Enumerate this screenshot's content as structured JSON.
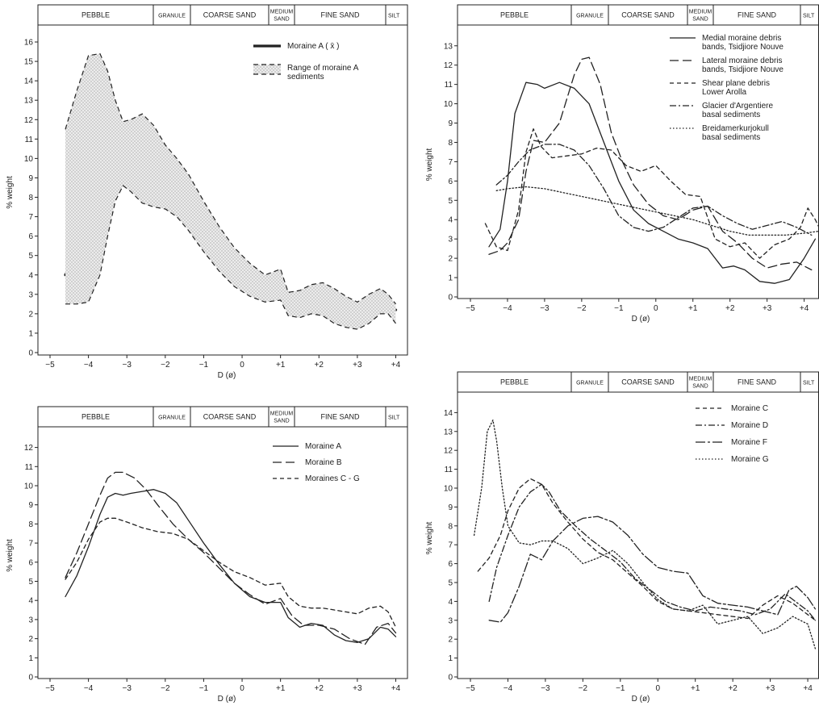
{
  "bands": [
    "PEBBLE",
    "GRANULE",
    "COARSE SAND",
    "MEDIUM SAND",
    "FINE SAND",
    "SILT"
  ],
  "x_label": "D (ø)",
  "y_label": "% weight",
  "chart_data": [
    {
      "type": "area",
      "x_ticks": [
        "−5",
        "−4",
        "−3",
        "−2",
        "−1",
        "0",
        "+1",
        "+2",
        "+3",
        "+4"
      ],
      "xlim": [
        -5,
        4.2
      ],
      "ylim": [
        0,
        16.5
      ],
      "y_ticks": [
        0,
        1,
        2,
        3,
        4,
        5,
        6,
        7,
        8,
        9,
        10,
        11,
        12,
        13,
        14,
        15,
        16
      ],
      "legend": {
        "position": "top-right"
      },
      "series": [
        {
          "name": "Moraine A ( x̄ )",
          "style": "bold",
          "x": [
            -4.6,
            -4.3,
            -4,
            -3.7,
            -3.5,
            -3.3,
            -3.1,
            -2.9,
            -2.6,
            -2.3,
            -2,
            -1.7,
            -1.4,
            -1,
            -0.6,
            -0.2,
            0.2,
            0.6,
            1,
            1.2,
            1.5,
            1.8,
            2.1,
            2.4,
            2.7,
            3,
            3.3,
            3.6,
            3.8,
            4.0
          ],
          "y": [
            4.0,
            5.0,
            6.5,
            8.2,
            9.3,
            9.6,
            9.4,
            9.5,
            9.7,
            9.8,
            9.6,
            9.0,
            8.2,
            7.0,
            5.8,
            4.8,
            4.1,
            3.8,
            3.7,
            3.0,
            2.6,
            2.9,
            2.7,
            2.2,
            1.8,
            1.7,
            1.9,
            2.5,
            2.4,
            2.2
          ]
        },
        {
          "name": "Range of moraine A sediments",
          "style": "dashed-range",
          "x": [
            -4.6,
            -4.3,
            -4,
            -3.7,
            -3.5,
            -3.3,
            -3.1,
            -2.9,
            -2.6,
            -2.3,
            -2,
            -1.7,
            -1.4,
            -1,
            -0.6,
            -0.2,
            0.2,
            0.6,
            1,
            1.2,
            1.5,
            1.8,
            2.1,
            2.4,
            2.7,
            3,
            3.3,
            3.6,
            3.8,
            4.0
          ],
          "upper": [
            11.5,
            13.5,
            15.3,
            15.4,
            14.5,
            13.0,
            11.9,
            12.0,
            12.3,
            11.7,
            10.7,
            10.0,
            9.2,
            7.8,
            6.5,
            5.4,
            4.6,
            4.0,
            4.3,
            3.1,
            3.2,
            3.5,
            3.6,
            3.3,
            2.9,
            2.6,
            3.0,
            3.3,
            3.0,
            2.5
          ],
          "lower": [
            2.5,
            2.5,
            2.6,
            4.0,
            6.0,
            7.8,
            8.6,
            8.3,
            7.7,
            7.5,
            7.4,
            7.0,
            6.3,
            5.2,
            4.2,
            3.4,
            2.9,
            2.6,
            2.7,
            1.9,
            1.8,
            2.0,
            1.9,
            1.5,
            1.3,
            1.2,
            1.5,
            2.0,
            2.0,
            1.5
          ]
        }
      ]
    },
    {
      "type": "line",
      "x_ticks": [
        "−5",
        "−4",
        "−3",
        "−2",
        "−1",
        "0",
        "+1",
        "+2",
        "+3",
        "+4"
      ],
      "xlim": [
        -5,
        4.4
      ],
      "ylim": [
        0,
        13.7
      ],
      "y_ticks": [
        0,
        1,
        2,
        3,
        4,
        5,
        6,
        7,
        8,
        9,
        10,
        11,
        12,
        13
      ],
      "legend": {
        "position": "top-right"
      },
      "series": [
        {
          "name": "Medial moraine debris bands, Tsidjiore Nouve",
          "style": "solid",
          "x": [
            -4.5,
            -4.2,
            -4,
            -3.8,
            -3.5,
            -3.2,
            -3,
            -2.6,
            -2.2,
            -1.8,
            -1.4,
            -1,
            -0.6,
            -0.2,
            0.2,
            0.6,
            1,
            1.4,
            1.8,
            2.1,
            2.4,
            2.8,
            3.2,
            3.6,
            4.0,
            4.3
          ],
          "y": [
            2.6,
            3.5,
            6.0,
            9.5,
            11.1,
            11.0,
            10.8,
            11.1,
            10.8,
            10.0,
            8.0,
            6.0,
            4.5,
            3.8,
            3.4,
            3.0,
            2.8,
            2.5,
            1.5,
            1.6,
            1.4,
            0.8,
            0.7,
            0.9,
            2.0,
            3.0
          ]
        },
        {
          "name": "Lateral moraine debris bands, Tsidjiore Nouve",
          "style": "long-dash",
          "x": [
            -4.5,
            -4.2,
            -4,
            -3.7,
            -3.5,
            -3.3,
            -3,
            -2.6,
            -2.2,
            -2,
            -1.8,
            -1.5,
            -1.2,
            -0.9,
            -0.6,
            -0.2,
            0.2,
            0.6,
            1,
            1.4,
            1.8,
            2.2,
            2.6,
            3,
            3.4,
            3.8,
            4.2
          ],
          "y": [
            2.2,
            2.4,
            2.8,
            4.0,
            6.5,
            8.1,
            8.0,
            9.0,
            11.5,
            12.3,
            12.4,
            11.0,
            8.5,
            7.0,
            5.8,
            4.8,
            4.2,
            4.0,
            4.5,
            4.7,
            3.4,
            2.8,
            2.0,
            1.5,
            1.7,
            1.8,
            1.4
          ]
        },
        {
          "name": "Shear plane debris Lower Arolla",
          "style": "short-dash",
          "x": [
            -4.6,
            -4.3,
            -4,
            -3.7,
            -3.5,
            -3.3,
            -3.1,
            -2.8,
            -2.4,
            -2,
            -1.6,
            -1.2,
            -0.8,
            -0.4,
            0,
            0.4,
            0.8,
            1.2,
            1.6,
            2,
            2.4,
            2.8,
            3.2,
            3.6,
            3.9,
            4.1,
            4.3,
            4.5
          ],
          "y": [
            3.8,
            2.6,
            2.4,
            4.5,
            7.5,
            8.7,
            7.8,
            7.2,
            7.3,
            7.4,
            7.7,
            7.6,
            6.8,
            6.5,
            6.8,
            6.0,
            5.3,
            5.2,
            3.0,
            2.6,
            2.8,
            2.0,
            2.7,
            3.0,
            3.6,
            4.6,
            4.0,
            3.2
          ]
        },
        {
          "name": "Glacier d'Argentiere basal sediments",
          "style": "dash-dot",
          "x": [
            -4.3,
            -4,
            -3.7,
            -3.4,
            -3,
            -2.6,
            -2.2,
            -1.8,
            -1.4,
            -1,
            -0.6,
            -0.2,
            0.2,
            0.6,
            1,
            1.4,
            1.8,
            2.2,
            2.6,
            3,
            3.4,
            3.8,
            4.2
          ],
          "y": [
            5.8,
            6.3,
            7.0,
            7.6,
            7.9,
            7.9,
            7.6,
            6.8,
            5.6,
            4.2,
            3.6,
            3.4,
            3.6,
            4.1,
            4.6,
            4.7,
            4.2,
            3.8,
            3.5,
            3.7,
            3.9,
            3.6,
            3.2
          ]
        },
        {
          "name": "Breidamerkurjokull basal sediments",
          "style": "dotted",
          "x": [
            -4.3,
            -4,
            -3.5,
            -3,
            -2.5,
            -2,
            -1.5,
            -1,
            -0.5,
            0,
            0.5,
            1,
            1.5,
            2,
            2.5,
            3,
            3.5,
            4,
            4.4
          ],
          "y": [
            5.5,
            5.6,
            5.7,
            5.6,
            5.4,
            5.2,
            5.0,
            4.8,
            4.6,
            4.4,
            4.2,
            4.0,
            3.7,
            3.4,
            3.2,
            3.2,
            3.2,
            3.3,
            3.4
          ]
        }
      ]
    },
    {
      "type": "line",
      "x_ticks": [
        "−5",
        "−4",
        "−3",
        "−2",
        "−1",
        "0",
        "+1",
        "+2",
        "+3",
        "+4"
      ],
      "xlim": [
        -5,
        4.2
      ],
      "ylim": [
        0,
        12.7
      ],
      "y_ticks": [
        0,
        1,
        2,
        3,
        4,
        5,
        6,
        7,
        8,
        9,
        10,
        11,
        12
      ],
      "legend": {
        "position": "top-right"
      },
      "series": [
        {
          "name": "Moraine A",
          "style": "solid",
          "x": [
            -4.6,
            -4.3,
            -4,
            -3.7,
            -3.5,
            -3.3,
            -3.1,
            -2.9,
            -2.6,
            -2.3,
            -2,
            -1.7,
            -1.4,
            -1,
            -0.6,
            -0.2,
            0.2,
            0.6,
            1,
            1.2,
            1.5,
            1.8,
            2.1,
            2.4,
            2.7,
            3,
            3.3,
            3.6,
            3.8,
            4.0
          ],
          "y": [
            4.2,
            5.3,
            6.8,
            8.5,
            9.4,
            9.6,
            9.5,
            9.6,
            9.7,
            9.8,
            9.6,
            9.1,
            8.2,
            7.0,
            5.9,
            4.9,
            4.2,
            3.9,
            3.9,
            3.1,
            2.6,
            2.8,
            2.7,
            2.2,
            1.9,
            1.8,
            2.0,
            2.6,
            2.5,
            2.1
          ]
        },
        {
          "name": "Moraine B",
          "style": "long-dash",
          "x": [
            -4.6,
            -4.3,
            -4,
            -3.7,
            -3.5,
            -3.3,
            -3.1,
            -2.8,
            -2.5,
            -2.2,
            -1.8,
            -1.4,
            -1,
            -0.6,
            -0.2,
            0.2,
            0.6,
            1,
            1.3,
            1.6,
            2,
            2.4,
            2.8,
            3.2,
            3.5,
            3.8,
            4.0
          ],
          "y": [
            5.2,
            6.5,
            8.0,
            9.5,
            10.4,
            10.7,
            10.7,
            10.4,
            9.8,
            9.0,
            8.0,
            7.2,
            6.5,
            5.7,
            4.9,
            4.3,
            3.8,
            4.1,
            3.2,
            2.7,
            2.7,
            2.5,
            2.0,
            1.7,
            2.6,
            2.8,
            2.3
          ]
        },
        {
          "name": "Moraines C - G",
          "style": "short-dash",
          "x": [
            -4.6,
            -4.3,
            -4,
            -3.7,
            -3.5,
            -3.3,
            -3,
            -2.6,
            -2.2,
            -1.8,
            -1.4,
            -1,
            -0.6,
            -0.2,
            0.2,
            0.6,
            1,
            1.2,
            1.5,
            1.8,
            2.1,
            2.4,
            2.7,
            3,
            3.3,
            3.6,
            3.8,
            4.0
          ],
          "y": [
            5.1,
            6.0,
            7.2,
            8.1,
            8.3,
            8.3,
            8.1,
            7.8,
            7.6,
            7.5,
            7.2,
            6.6,
            6.0,
            5.5,
            5.2,
            4.8,
            4.9,
            4.2,
            3.7,
            3.6,
            3.6,
            3.5,
            3.4,
            3.3,
            3.6,
            3.7,
            3.4,
            2.6
          ]
        }
      ]
    },
    {
      "type": "line",
      "x_ticks": [
        "−5",
        "−4",
        "−3",
        "−2",
        "−1",
        "0",
        "+1",
        "+2",
        "+3",
        "+4"
      ],
      "xlim": [
        -5,
        4.3
      ],
      "ylim": [
        0,
        14.7
      ],
      "y_ticks": [
        0,
        1,
        2,
        3,
        4,
        5,
        6,
        7,
        8,
        9,
        10,
        11,
        12,
        13,
        14
      ],
      "legend": {
        "position": "top-right"
      },
      "series": [
        {
          "name": "Moraine C",
          "style": "short-dash",
          "x": [
            -4.8,
            -4.5,
            -4.2,
            -4,
            -3.7,
            -3.4,
            -3.1,
            -2.8,
            -2.4,
            -2,
            -1.6,
            -1.2,
            -0.8,
            -0.4,
            0,
            0.4,
            0.8,
            1.2,
            1.6,
            2,
            2.4,
            2.8,
            3.2,
            3.6,
            4,
            4.2
          ],
          "y": [
            5.6,
            6.3,
            7.5,
            8.8,
            10.0,
            10.5,
            10.2,
            9.2,
            8.2,
            7.3,
            6.6,
            6.2,
            5.5,
            4.8,
            4.0,
            3.6,
            3.5,
            3.4,
            3.3,
            3.2,
            3.1,
            3.8,
            4.3,
            3.9,
            3.3,
            3.0
          ]
        },
        {
          "name": "Moraine D",
          "style": "dash-dot",
          "x": [
            -4.5,
            -4.3,
            -4,
            -3.7,
            -3.4,
            -3.1,
            -2.9,
            -2.6,
            -2.2,
            -1.8,
            -1.4,
            -1,
            -0.6,
            -0.2,
            0.2,
            0.6,
            1,
            1.4,
            1.8,
            2.2,
            2.6,
            3,
            3.4,
            3.8,
            4.0,
            4.2
          ],
          "y": [
            4.0,
            5.8,
            7.5,
            9.0,
            9.8,
            10.2,
            9.8,
            8.8,
            8.0,
            7.3,
            6.7,
            6.1,
            5.2,
            4.6,
            4.0,
            3.7,
            3.5,
            3.7,
            3.6,
            3.5,
            3.3,
            3.6,
            4.4,
            3.8,
            3.5,
            3.0
          ]
        },
        {
          "name": "Moraine F",
          "style": "dash-dot-long",
          "x": [
            -4.5,
            -4.2,
            -4,
            -3.7,
            -3.4,
            -3.1,
            -2.8,
            -2.4,
            -2,
            -1.6,
            -1.2,
            -0.8,
            -0.4,
            0,
            0.4,
            0.8,
            1.2,
            1.6,
            2,
            2.4,
            2.8,
            3.2,
            3.5,
            3.7,
            4,
            4.2
          ],
          "y": [
            3.0,
            2.9,
            3.4,
            4.8,
            6.5,
            6.2,
            7.2,
            8.0,
            8.4,
            8.5,
            8.2,
            7.5,
            6.5,
            5.8,
            5.6,
            5.5,
            4.3,
            3.9,
            3.8,
            3.7,
            3.5,
            3.3,
            4.6,
            4.8,
            4.2,
            3.6
          ]
        },
        {
          "name": "Moraine G",
          "style": "dotted",
          "x": [
            -4.9,
            -4.7,
            -4.55,
            -4.4,
            -4.3,
            -4.15,
            -4,
            -3.7,
            -3.4,
            -3.1,
            -2.8,
            -2.4,
            -2,
            -1.6,
            -1.2,
            -0.8,
            -0.4,
            0,
            0.4,
            0.8,
            1.2,
            1.6,
            2,
            2.4,
            2.8,
            3.2,
            3.6,
            4,
            4.2
          ],
          "y": [
            7.5,
            10.0,
            13.0,
            13.6,
            12.5,
            10.0,
            8.0,
            7.1,
            7.0,
            7.2,
            7.2,
            6.8,
            6.0,
            6.3,
            6.7,
            6.0,
            5.0,
            4.1,
            3.6,
            3.5,
            3.8,
            2.8,
            3.0,
            3.2,
            2.3,
            2.6,
            3.2,
            2.8,
            1.5
          ]
        }
      ]
    }
  ]
}
